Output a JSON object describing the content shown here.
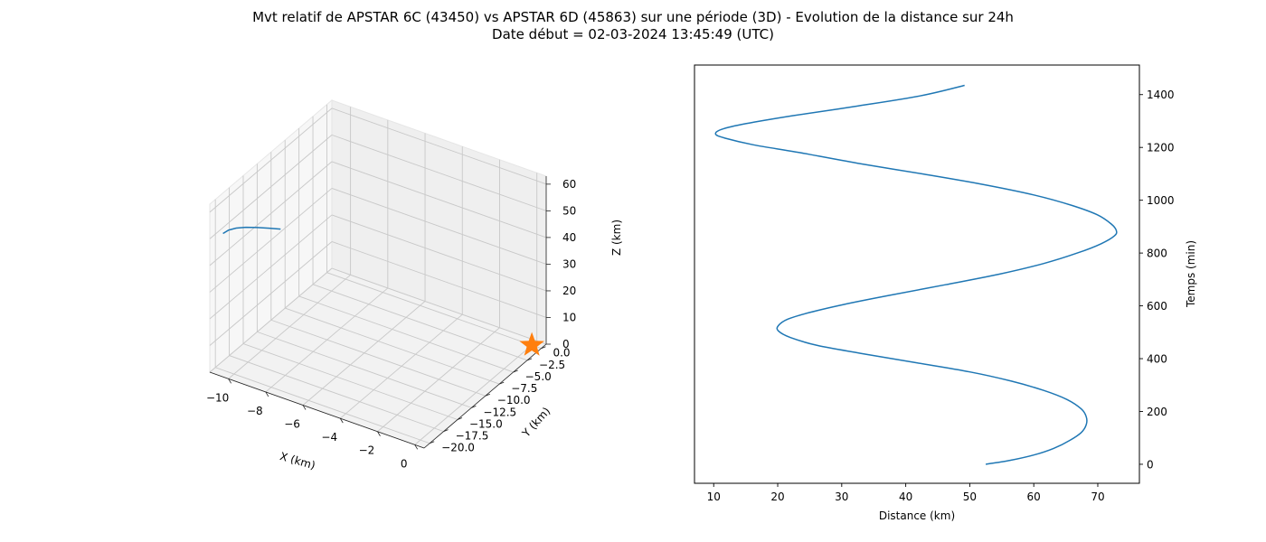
{
  "figure": {
    "title_line1": "Mvt relatif de APSTAR 6C (43450) vs APSTAR 6D (45863) sur une période (3D) - Evolution de la distance sur 24h",
    "title_line2": "Date début = 02-03-2024 13:45:49 (UTC)"
  },
  "chart_data": [
    {
      "type": "line3d",
      "xlabel": "X (km)",
      "ylabel": "Y (km)",
      "zlabel": "Z (km)",
      "xlim": [
        -11,
        0.5
      ],
      "ylim": [
        -21,
        0.9
      ],
      "zlim": [
        0,
        63
      ],
      "xticks": [
        -10,
        -8,
        -6,
        -4,
        -2,
        0
      ],
      "xtick_labels": [
        "−10",
        "−8",
        "−6",
        "−4",
        "−2",
        "0"
      ],
      "yticks": [
        0,
        -2.5,
        -5,
        -7.5,
        -10,
        -12.5,
        -15,
        -17.5,
        -20
      ],
      "ytick_labels": [
        "0.0",
        "−2.5",
        "−5.0",
        "−7.5",
        "−10.0",
        "−12.5",
        "−15.0",
        "−17.5",
        "−20.0"
      ],
      "zticks": [
        0,
        10,
        20,
        30,
        40,
        50,
        60
      ],
      "ztick_labels": [
        "0",
        "10",
        "20",
        "30",
        "40",
        "50",
        "60"
      ],
      "grid": true,
      "series": [
        {
          "color": "#1f77b4",
          "points": [
            [
              -10.5,
              -20.3,
              52
            ],
            [
              -10.3,
              -20.0,
              53.2
            ],
            [
              -10.0,
              -19.6,
              54.0
            ],
            [
              -9.6,
              -19.2,
              54.6
            ],
            [
              -9.1,
              -18.8,
              55.0
            ],
            [
              -8.6,
              -18.4,
              55.3
            ],
            [
              -8.1,
              -18.0,
              55.5
            ]
          ]
        }
      ],
      "markers": [
        {
          "symbol": "star",
          "color": "#ff7f0e",
          "point": [
            0,
            0,
            0
          ]
        }
      ]
    },
    {
      "type": "line",
      "xlabel": "Distance (km)",
      "ylabel": "Temps (min)",
      "xlim": [
        7,
        76.5
      ],
      "ylim": [
        -72,
        1512
      ],
      "xticks": [
        10,
        20,
        30,
        40,
        50,
        60,
        70
      ],
      "yticks": [
        0,
        200,
        400,
        600,
        800,
        1000,
        1200,
        1400
      ],
      "grid": false,
      "ytick_side": "right",
      "series": [
        {
          "color": "#1f77b4",
          "points": [
            [
              52.5,
              0
            ],
            [
              56.3,
              15
            ],
            [
              60,
              35
            ],
            [
              63.1,
              60
            ],
            [
              65.6,
              90
            ],
            [
              67.4,
              120
            ],
            [
              68.2,
              150
            ],
            [
              68.2,
              180
            ],
            [
              67.4,
              210
            ],
            [
              65.2,
              245
            ],
            [
              61.5,
              280
            ],
            [
              56.5,
              315
            ],
            [
              50,
              350
            ],
            [
              41.5,
              385
            ],
            [
              33,
              420
            ],
            [
              26.2,
              450
            ],
            [
              22,
              480
            ],
            [
              20.1,
              505
            ],
            [
              20.1,
              525
            ],
            [
              21.6,
              550
            ],
            [
              25,
              575
            ],
            [
              30.3,
              605
            ],
            [
              37.5,
              640
            ],
            [
              46.2,
              680
            ],
            [
              54.6,
              720
            ],
            [
              61.5,
              760
            ],
            [
              66.8,
              800
            ],
            [
              70.5,
              835
            ],
            [
              72.6,
              865
            ],
            [
              72.9,
              885
            ],
            [
              72.1,
              910
            ],
            [
              69.9,
              945
            ],
            [
              66,
              980
            ],
            [
              60,
              1020
            ],
            [
              52,
              1060
            ],
            [
              42.5,
              1100
            ],
            [
              32.5,
              1140
            ],
            [
              23.5,
              1180
            ],
            [
              16.2,
              1210
            ],
            [
              11.8,
              1235
            ],
            [
              10.3,
              1250
            ],
            [
              11.2,
              1268
            ],
            [
              15,
              1290
            ],
            [
              22.3,
              1320
            ],
            [
              32,
              1355
            ],
            [
              42.2,
              1395
            ],
            [
              49.2,
              1435
            ]
          ]
        }
      ]
    }
  ]
}
